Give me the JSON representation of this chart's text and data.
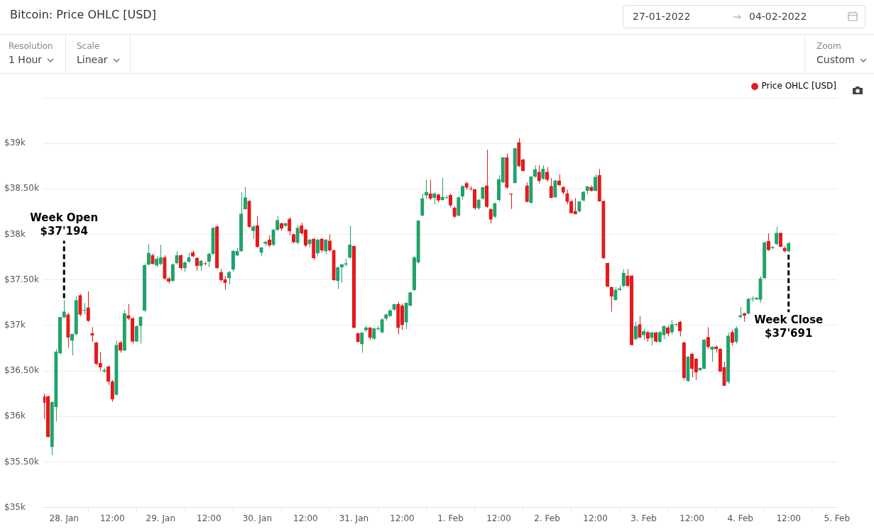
{
  "chart_data": {
    "type": "candlestick",
    "title": "Bitcoin: Price OHLC [USD]",
    "annotations": [
      "Resolution",
      "1 Hour",
      "Scale",
      "Linear",
      "Zoom",
      "Custom",
      "27-01-2022",
      "04-02-2022",
      {
        "text": "Week Open\n$37'194",
        "x": "2022-01-28T00:00",
        "y": 37275
      },
      {
        "text": "Week Close\n$37'691",
        "x": "2022-02-04T12:00",
        "y": 37800
      }
    ],
    "legend": "top right",
    "grid": "y",
    "xlim": [
      "2022-01-27T18:50",
      "2022-02-05T00:00"
    ],
    "xticks": [
      {
        "value": "2022-01-28T00:00",
        "label": "28. Jan"
      },
      {
        "value": "2022-01-28T12:00",
        "label": "12:00"
      },
      {
        "value": "2022-01-29T00:00",
        "label": "29. Jan"
      },
      {
        "value": "2022-01-29T12:00",
        "label": "12:00"
      },
      {
        "value": "2022-01-30T00:00",
        "label": "30. Jan"
      },
      {
        "value": "2022-01-30T12:00",
        "label": "12:00"
      },
      {
        "value": "2022-01-31T00:00",
        "label": "31. Jan"
      },
      {
        "value": "2022-01-31T12:00",
        "label": "12:00"
      },
      {
        "value": "2022-02-01T00:00",
        "label": "1. Feb"
      },
      {
        "value": "2022-02-01T12:00",
        "label": "12:00"
      },
      {
        "value": "2022-02-02T00:00",
        "label": "2. Feb"
      },
      {
        "value": "2022-02-02T12:00",
        "label": "12:00"
      },
      {
        "value": "2022-02-03T00:00",
        "label": "3. Feb"
      },
      {
        "value": "2022-02-03T12:00",
        "label": "12:00"
      },
      {
        "value": "2022-02-04T00:00",
        "label": "4. Feb"
      },
      {
        "value": "2022-02-04T12:00",
        "label": "12:00"
      },
      {
        "value": "2022-02-05T00:00",
        "label": "5. Feb"
      }
    ],
    "ylim": [
      35000,
      39500
    ],
    "yticks": [
      {
        "value": 35000,
        "label": "$35k"
      },
      {
        "value": 35500,
        "label": "$35.50k"
      },
      {
        "value": 36000,
        "label": "$36k"
      },
      {
        "value": 36500,
        "label": "$36.50k"
      },
      {
        "value": 37000,
        "label": "$37k"
      },
      {
        "value": 37500,
        "label": "$37.50k"
      },
      {
        "value": 38000,
        "label": "$38k"
      },
      {
        "value": 38500,
        "label": "$38.50k"
      },
      {
        "value": 39000,
        "label": "$39k"
      },
      {
        "value": 39500,
        "label": null
      }
    ],
    "x": [
      "2022-01-27T19:00",
      "2022-01-27T20:00",
      "2022-01-27T21:00",
      "2022-01-27T22:00",
      "2022-01-27T23:00",
      "2022-01-28T00:00",
      "2022-01-28T01:00",
      "2022-01-28T02:00",
      "2022-01-28T03:00",
      "2022-01-28T04:00",
      "2022-01-28T05:00",
      "2022-01-28T06:00",
      "2022-01-28T07:00",
      "2022-01-28T08:00",
      "2022-01-28T09:00",
      "2022-01-28T10:00",
      "2022-01-28T11:00",
      "2022-01-28T12:00",
      "2022-01-28T13:00",
      "2022-01-28T14:00",
      "2022-01-28T15:00",
      "2022-01-28T16:00",
      "2022-01-28T17:00",
      "2022-01-28T18:00",
      "2022-01-28T19:00",
      "2022-01-28T20:00",
      "2022-01-28T21:00",
      "2022-01-28T22:00",
      "2022-01-28T23:00",
      "2022-01-29T00:00",
      "2022-01-29T01:00",
      "2022-01-29T02:00",
      "2022-01-29T03:00",
      "2022-01-29T04:00",
      "2022-01-29T05:00",
      "2022-01-29T06:00",
      "2022-01-29T07:00",
      "2022-01-29T08:00",
      "2022-01-29T09:00",
      "2022-01-29T10:00",
      "2022-01-29T11:00",
      "2022-01-29T12:00",
      "2022-01-29T13:00",
      "2022-01-29T14:00",
      "2022-01-29T15:00",
      "2022-01-29T16:00",
      "2022-01-29T17:00",
      "2022-01-29T18:00",
      "2022-01-29T19:00",
      "2022-01-29T20:00",
      "2022-01-29T21:00",
      "2022-01-29T22:00",
      "2022-01-29T23:00",
      "2022-01-30T00:00",
      "2022-01-30T01:00",
      "2022-01-30T02:00",
      "2022-01-30T03:00",
      "2022-01-30T04:00",
      "2022-01-30T05:00",
      "2022-01-30T06:00",
      "2022-01-30T07:00",
      "2022-01-30T08:00",
      "2022-01-30T09:00",
      "2022-01-30T10:00",
      "2022-01-30T11:00",
      "2022-01-30T12:00",
      "2022-01-30T13:00",
      "2022-01-30T14:00",
      "2022-01-30T15:00",
      "2022-01-30T16:00",
      "2022-01-30T17:00",
      "2022-01-30T18:00",
      "2022-01-30T19:00",
      "2022-01-30T20:00",
      "2022-01-30T21:00",
      "2022-01-30T22:00",
      "2022-01-30T23:00",
      "2022-01-31T00:00",
      "2022-01-31T01:00",
      "2022-01-31T02:00",
      "2022-01-31T03:00",
      "2022-01-31T04:00",
      "2022-01-31T05:00",
      "2022-01-31T06:00",
      "2022-01-31T07:00",
      "2022-01-31T08:00",
      "2022-01-31T09:00",
      "2022-01-31T10:00",
      "2022-01-31T11:00",
      "2022-01-31T12:00",
      "2022-01-31T13:00",
      "2022-01-31T14:00",
      "2022-01-31T15:00",
      "2022-01-31T16:00",
      "2022-01-31T17:00",
      "2022-01-31T18:00",
      "2022-01-31T19:00",
      "2022-01-31T20:00",
      "2022-01-31T21:00",
      "2022-01-31T22:00",
      "2022-01-31T23:00",
      "2022-02-01T00:00",
      "2022-02-01T01:00",
      "2022-02-01T02:00",
      "2022-02-01T03:00",
      "2022-02-01T04:00",
      "2022-02-01T05:00",
      "2022-02-01T06:00",
      "2022-02-01T07:00",
      "2022-02-01T08:00",
      "2022-02-01T09:00",
      "2022-02-01T10:00",
      "2022-02-01T11:00",
      "2022-02-01T12:00",
      "2022-02-01T13:00",
      "2022-02-01T14:00",
      "2022-02-01T15:00",
      "2022-02-01T16:00",
      "2022-02-01T17:00",
      "2022-02-01T18:00",
      "2022-02-01T19:00",
      "2022-02-01T20:00",
      "2022-02-01T21:00",
      "2022-02-01T22:00",
      "2022-02-01T23:00",
      "2022-02-02T00:00",
      "2022-02-02T01:00",
      "2022-02-02T02:00",
      "2022-02-02T03:00",
      "2022-02-02T04:00",
      "2022-02-02T05:00",
      "2022-02-02T06:00",
      "2022-02-02T07:00",
      "2022-02-02T08:00",
      "2022-02-02T09:00",
      "2022-02-02T10:00",
      "2022-02-02T11:00",
      "2022-02-02T12:00",
      "2022-02-02T13:00",
      "2022-02-02T14:00",
      "2022-02-02T15:00",
      "2022-02-02T16:00",
      "2022-02-02T17:00",
      "2022-02-02T18:00",
      "2022-02-02T19:00",
      "2022-02-02T20:00",
      "2022-02-02T21:00",
      "2022-02-02T22:00",
      "2022-02-02T23:00",
      "2022-02-03T00:00",
      "2022-02-03T01:00",
      "2022-02-03T02:00",
      "2022-02-03T03:00",
      "2022-02-03T04:00",
      "2022-02-03T05:00",
      "2022-02-03T06:00",
      "2022-02-03T07:00",
      "2022-02-03T08:00",
      "2022-02-03T09:00",
      "2022-02-03T10:00",
      "2022-02-03T11:00",
      "2022-02-03T12:00",
      "2022-02-03T13:00",
      "2022-02-03T14:00",
      "2022-02-03T15:00",
      "2022-02-03T16:00",
      "2022-02-03T17:00",
      "2022-02-03T18:00",
      "2022-02-03T19:00",
      "2022-02-03T20:00",
      "2022-02-03T21:00",
      "2022-02-03T22:00",
      "2022-02-03T23:00",
      "2022-02-04T00:00",
      "2022-02-04T01:00",
      "2022-02-04T02:00",
      "2022-02-04T03:00",
      "2022-02-04T04:00",
      "2022-02-04T05:00",
      "2022-02-04T06:00",
      "2022-02-04T07:00",
      "2022-02-04T08:00",
      "2022-02-04T09:00",
      "2022-02-04T10:00",
      "2022-02-04T11:00",
      "2022-02-04T12:00"
    ],
    "series": [
      {
        "name": "Price OHLC [USD]",
        "color": "#e41a1c",
        "colors": [
          "#e41a1c",
          "#e41a1c",
          "#1fa36b",
          "#1fa36b",
          "#1fa36b",
          "#1fa36b",
          "#e41a1c",
          "#1fa36b",
          "#1fa36b",
          "#e41a1c",
          "#1fa36b",
          "#e41a1c",
          "#e41a1c",
          "#e41a1c",
          "#e41a1c",
          "#1fa36b",
          "#e41a1c",
          "#e41a1c",
          "#1fa36b",
          "#e41a1c",
          "#1fa36b",
          "#e41a1c",
          "#e41a1c",
          "#1fa36b",
          "#1fa36b",
          "#1fa36b",
          "#1fa36b",
          "#e41a1c",
          "#1fa36b",
          "#1fa36b",
          "#e41a1c",
          "#e41a1c",
          "#1fa36b",
          "#1fa36b",
          "#e41a1c",
          "#1fa36b",
          "#1fa36b",
          "#e41a1c",
          "#e41a1c",
          "#1fa36b",
          "#e41a1c",
          "#1fa36b",
          "#1fa36b",
          "#e41a1c",
          "#e41a1c",
          "#e41a1c",
          "#1fa36b",
          "#1fa36b",
          "#1fa36b",
          "#1fa36b",
          "#1fa36b",
          "#e41a1c",
          "#1fa36b",
          "#e41a1c",
          "#1fa36b",
          "#1fa36b",
          "#e41a1c",
          "#1fa36b",
          "#1fa36b",
          "#e41a1c",
          "#1fa36b",
          "#e41a1c",
          "#e41a1c",
          "#1fa36b",
          "#e41a1c",
          "#e41a1c",
          "#1fa36b",
          "#e41a1c",
          "#1fa36b",
          "#e41a1c",
          "#1fa36b",
          "#e41a1c",
          "#e41a1c",
          "#1fa36b",
          "#1fa36b",
          "#1fa36b",
          "#1fa36b",
          "#e41a1c",
          "#e41a1c",
          "#1fa36b",
          "#1fa36b",
          "#e41a1c",
          "#1fa36b",
          "#1fa36b",
          "#1fa36b",
          "#1fa36b",
          "#1fa36b",
          "#1fa36b",
          "#e41a1c",
          "#e41a1c",
          "#1fa36b",
          "#1fa36b",
          "#1fa36b",
          "#1fa36b",
          "#1fa36b",
          "#1fa36b",
          "#e41a1c",
          "#1fa36b",
          "#e41a1c",
          "#1fa36b",
          "#1fa36b",
          "#e41a1c",
          "#e41a1c",
          "#1fa36b",
          "#1fa36b",
          "#e41a1c",
          "#e41a1c",
          "#e41a1c",
          "#1fa36b",
          "#1fa36b",
          "#e41a1c",
          "#e41a1c",
          "#1fa36b",
          "#1fa36b",
          "#1fa36b",
          "#e41a1c",
          "#e41a1c",
          "#1fa36b",
          "#e41a1c",
          "#e41a1c",
          "#e41a1c",
          "#1fa36b",
          "#1fa36b",
          "#e41a1c",
          "#1fa36b",
          "#e41a1c",
          "#e41a1c",
          "#1fa36b",
          "#e41a1c",
          "#e41a1c",
          "#e41a1c",
          "#e41a1c",
          "#e41a1c",
          "#1fa36b",
          "#1fa36b",
          "#1fa36b",
          "#e41a1c",
          "#1fa36b",
          "#e41a1c",
          "#e41a1c",
          "#e41a1c",
          "#e41a1c",
          "#1fa36b",
          "#1fa36b",
          "#1fa36b",
          "#e41a1c",
          "#e41a1c",
          "#1fa36b",
          "#e41a1c",
          "#1fa36b",
          "#e41a1c",
          "#1fa36b",
          "#e41a1c",
          "#1fa36b",
          "#1fa36b",
          "#e41a1c",
          "#1fa36b",
          "#1fa36b",
          "#e41a1c",
          "#e41a1c",
          "#1fa36b",
          "#e41a1c",
          "#e41a1c",
          "#1fa36b",
          "#1fa36b",
          "#e41a1c",
          "#1fa36b",
          "#e41a1c",
          "#e41a1c",
          "#e41a1c",
          "#1fa36b",
          "#e41a1c",
          "#1fa36b",
          "#1fa36b",
          "#e41a1c",
          "#1fa36b",
          "#1fa36b",
          "#1fa36b",
          "#1fa36b",
          "#1fa36b",
          "#e41a1c",
          "#1fa36b",
          "#1fa36b",
          "#e41a1c",
          "#e41a1c",
          "#1fa36b"
        ],
        "ohlc": [
          [
            36220,
            36250,
            35970,
            36150
          ],
          [
            36220,
            36230,
            35770,
            35775
          ],
          [
            35665,
            36160,
            35575,
            36160
          ],
          [
            36105,
            36740,
            35945,
            36710
          ],
          [
            36695,
            37090,
            36680,
            37090
          ],
          [
            37090,
            37275,
            37080,
            37150
          ],
          [
            37120,
            37140,
            36755,
            36870
          ],
          [
            36835,
            36905,
            36670,
            36905
          ],
          [
            36905,
            37315,
            36890,
            37275
          ],
          [
            37330,
            37345,
            37100,
            37120
          ],
          [
            37165,
            37245,
            37120,
            37170
          ],
          [
            37195,
            37375,
            37040,
            37050
          ],
          [
            36910,
            36980,
            36820,
            36890
          ],
          [
            36810,
            36820,
            36560,
            36580
          ],
          [
            36585,
            36710,
            36500,
            36540
          ],
          [
            36495,
            36530,
            36480,
            36510
          ],
          [
            36545,
            36560,
            36345,
            36385
          ],
          [
            36385,
            36400,
            36160,
            36190
          ],
          [
            36240,
            36835,
            36230,
            36785
          ],
          [
            36810,
            36830,
            36700,
            36725
          ],
          [
            36725,
            37165,
            36720,
            37130
          ],
          [
            37110,
            37235,
            37060,
            37075
          ],
          [
            37075,
            37090,
            36800,
            36825
          ],
          [
            36825,
            37000,
            36820,
            36990
          ],
          [
            36995,
            37100,
            36800,
            37090
          ],
          [
            37165,
            37680,
            37150,
            37660
          ],
          [
            37670,
            37895,
            37660,
            37795
          ],
          [
            37770,
            37790,
            37670,
            37675
          ],
          [
            37660,
            37760,
            37640,
            37730
          ],
          [
            37675,
            37885,
            37660,
            37745
          ],
          [
            37745,
            37770,
            37500,
            37515
          ],
          [
            37515,
            37530,
            37460,
            37485
          ],
          [
            37490,
            37680,
            37480,
            37670
          ],
          [
            37685,
            37815,
            37670,
            37770
          ],
          [
            37770,
            37780,
            37610,
            37630
          ],
          [
            37630,
            37700,
            37590,
            37690
          ],
          [
            37700,
            37800,
            37690,
            37745
          ],
          [
            37800,
            37820,
            37750,
            37760
          ],
          [
            37740,
            37750,
            37600,
            37655
          ],
          [
            37655,
            37720,
            37600,
            37710
          ],
          [
            37680,
            37700,
            37660,
            37675
          ],
          [
            37700,
            37800,
            37640,
            37785
          ],
          [
            37785,
            38080,
            37780,
            38070
          ],
          [
            38085,
            38100,
            37620,
            37630
          ],
          [
            37585,
            37620,
            37480,
            37500
          ],
          [
            37505,
            37540,
            37390,
            37470
          ],
          [
            37520,
            37600,
            37450,
            37585
          ],
          [
            37615,
            37830,
            37590,
            37815
          ],
          [
            37770,
            37850,
            37760,
            37815
          ],
          [
            37815,
            38460,
            37810,
            38225
          ],
          [
            38280,
            38520,
            38270,
            38405
          ],
          [
            38365,
            38380,
            38070,
            38085
          ],
          [
            38040,
            38100,
            37950,
            38085
          ],
          [
            38095,
            38200,
            37850,
            37865
          ],
          [
            37800,
            37860,
            37760,
            37855
          ],
          [
            37900,
            37930,
            37870,
            37915
          ],
          [
            37940,
            37990,
            37860,
            37880
          ],
          [
            37885,
            38060,
            37870,
            38050
          ],
          [
            38050,
            38200,
            38040,
            38155
          ],
          [
            38120,
            38130,
            38040,
            38065
          ],
          [
            38095,
            38130,
            38080,
            38120
          ],
          [
            38170,
            38190,
            37990,
            38035
          ],
          [
            38000,
            38010,
            37900,
            37915
          ],
          [
            37910,
            38100,
            37890,
            38070
          ],
          [
            38095,
            38130,
            37990,
            38015
          ],
          [
            38050,
            38060,
            37860,
            37880
          ],
          [
            37895,
            37950,
            37860,
            37940
          ],
          [
            37950,
            37960,
            37720,
            37740
          ],
          [
            37795,
            37950,
            37760,
            37940
          ],
          [
            37950,
            37960,
            37800,
            37825
          ],
          [
            37815,
            37950,
            37780,
            37940
          ],
          [
            37930,
            38000,
            37810,
            37825
          ],
          [
            37825,
            37830,
            37490,
            37500
          ],
          [
            37490,
            37640,
            37400,
            37640
          ],
          [
            37640,
            37670,
            37470,
            37670
          ],
          [
            37670,
            37730,
            37650,
            37680
          ],
          [
            37745,
            38095,
            37730,
            37885
          ],
          [
            37870,
            37880,
            36970,
            36975
          ],
          [
            36910,
            36920,
            36810,
            36820
          ],
          [
            36795,
            36920,
            36700,
            36920
          ],
          [
            36950,
            36990,
            36930,
            36975
          ],
          [
            36975,
            36980,
            36840,
            36865
          ],
          [
            36855,
            36970,
            36840,
            36965
          ],
          [
            36960,
            36990,
            36940,
            36970
          ],
          [
            36925,
            37080,
            36910,
            37065
          ],
          [
            37075,
            37130,
            37050,
            37120
          ],
          [
            37105,
            37180,
            37090,
            37165
          ],
          [
            37175,
            37240,
            37160,
            37230
          ],
          [
            37235,
            37260,
            36900,
            36975
          ],
          [
            37215,
            37240,
            36950,
            37005
          ],
          [
            37035,
            37250,
            36960,
            37245
          ],
          [
            37220,
            37370,
            37210,
            37360
          ],
          [
            37390,
            37760,
            37380,
            37745
          ],
          [
            37695,
            38150,
            37680,
            38150
          ],
          [
            38210,
            38450,
            38200,
            38395
          ],
          [
            38430,
            38600,
            38390,
            38465
          ],
          [
            38445,
            38600,
            38380,
            38395
          ],
          [
            38405,
            38460,
            38330,
            38450
          ],
          [
            38435,
            38450,
            38350,
            38375
          ],
          [
            38380,
            38620,
            38370,
            38410
          ],
          [
            38400,
            38430,
            38390,
            38405
          ],
          [
            38430,
            38450,
            38300,
            38320
          ],
          [
            38290,
            38310,
            38180,
            38195
          ],
          [
            38210,
            38420,
            38200,
            38405
          ],
          [
            38420,
            38540,
            38380,
            38530
          ],
          [
            38560,
            38580,
            38490,
            38515
          ],
          [
            38505,
            38530,
            38480,
            38500
          ],
          [
            38495,
            38500,
            38270,
            38290
          ],
          [
            38290,
            38390,
            38270,
            38380
          ],
          [
            38395,
            38520,
            38380,
            38515
          ],
          [
            38535,
            38930,
            38290,
            38305
          ],
          [
            38275,
            38290,
            38120,
            38165
          ],
          [
            38195,
            38350,
            38180,
            38340
          ],
          [
            38380,
            38650,
            38360,
            38605
          ],
          [
            38575,
            38850,
            38560,
            38845
          ],
          [
            38845,
            38890,
            38500,
            38515
          ],
          [
            38445,
            38445,
            38280,
            38440
          ],
          [
            38565,
            38950,
            38560,
            38945
          ],
          [
            39010,
            39055,
            38740,
            38750
          ],
          [
            38820,
            38830,
            38690,
            38700
          ],
          [
            38535,
            38570,
            38350,
            38360
          ],
          [
            38350,
            38640,
            38340,
            38635
          ],
          [
            38635,
            38760,
            38620,
            38715
          ],
          [
            38685,
            38760,
            38560,
            38590
          ],
          [
            38615,
            38760,
            38600,
            38720
          ],
          [
            38685,
            38740,
            38580,
            38600
          ],
          [
            38530,
            38620,
            38400,
            38405
          ],
          [
            38410,
            38600,
            38400,
            38590
          ],
          [
            38590,
            38660,
            38530,
            38545
          ],
          [
            38520,
            38530,
            38440,
            38460
          ],
          [
            38450,
            38490,
            38330,
            38360
          ],
          [
            38360,
            38380,
            38230,
            38235
          ],
          [
            38255,
            38400,
            38220,
            38225
          ],
          [
            38255,
            38360,
            38240,
            38360
          ],
          [
            38375,
            38480,
            38360,
            38465
          ],
          [
            38480,
            38530,
            38440,
            38525
          ],
          [
            38520,
            38540,
            38470,
            38480
          ],
          [
            38480,
            38660,
            38470,
            38630
          ],
          [
            38650,
            38720,
            38360,
            38365
          ],
          [
            38365,
            38370,
            37730,
            37740
          ],
          [
            37685,
            37690,
            37420,
            37430
          ],
          [
            37420,
            37430,
            37150,
            37320
          ],
          [
            37280,
            37420,
            37270,
            37390
          ],
          [
            37390,
            37440,
            37380,
            37405
          ],
          [
            37435,
            37620,
            37420,
            37575
          ],
          [
            37545,
            37620,
            37420,
            37435
          ],
          [
            37545,
            37550,
            36780,
            36785
          ],
          [
            36850,
            37040,
            36840,
            36990
          ],
          [
            37010,
            37100,
            36860,
            36870
          ],
          [
            36895,
            36960,
            36840,
            36935
          ],
          [
            36925,
            36940,
            36820,
            36855
          ],
          [
            36865,
            36930,
            36780,
            36920
          ],
          [
            36920,
            36930,
            36810,
            36825
          ],
          [
            36820,
            36940,
            36810,
            36925
          ],
          [
            36895,
            37000,
            36850,
            36990
          ],
          [
            36975,
            37000,
            36880,
            36910
          ],
          [
            36925,
            37060,
            36900,
            37010
          ],
          [
            37010,
            37020,
            36990,
            37015
          ],
          [
            37035,
            37050,
            36880,
            36940
          ],
          [
            36810,
            36820,
            36400,
            36425
          ],
          [
            36390,
            36660,
            36380,
            36655
          ],
          [
            36685,
            36700,
            36430,
            36525
          ],
          [
            36630,
            36640,
            36400,
            36485
          ],
          [
            36510,
            36540,
            36500,
            36530
          ],
          [
            36525,
            36850,
            36520,
            36840
          ],
          [
            36870,
            36980,
            36740,
            36765
          ],
          [
            36735,
            36770,
            36600,
            36765
          ],
          [
            36765,
            36780,
            36700,
            36740
          ],
          [
            36740,
            36750,
            36490,
            36495
          ],
          [
            36540,
            36600,
            36340,
            36340
          ],
          [
            36380,
            36920,
            36360,
            36885
          ],
          [
            36925,
            36950,
            36780,
            36810
          ],
          [
            36820,
            36990,
            36800,
            36965
          ],
          [
            37095,
            37200,
            37080,
            37110
          ],
          [
            37130,
            37140,
            37040,
            37110
          ],
          [
            37130,
            37300,
            37120,
            37290
          ],
          [
            37290,
            37320,
            37260,
            37295
          ],
          [
            37290,
            37310,
            37280,
            37300
          ],
          [
            37285,
            37540,
            37250,
            37515
          ],
          [
            37520,
            37920,
            37510,
            37910
          ],
          [
            37925,
            38010,
            37820,
            37830
          ],
          [
            37850,
            37870,
            37840,
            37860
          ],
          [
            37895,
            38085,
            37880,
            38015
          ],
          [
            38015,
            38020,
            37860,
            37865
          ],
          [
            37850,
            37870,
            37800,
            37815
          ],
          [
            37815,
            37920,
            37800,
            37900
          ]
        ]
      }
    ]
  }
}
